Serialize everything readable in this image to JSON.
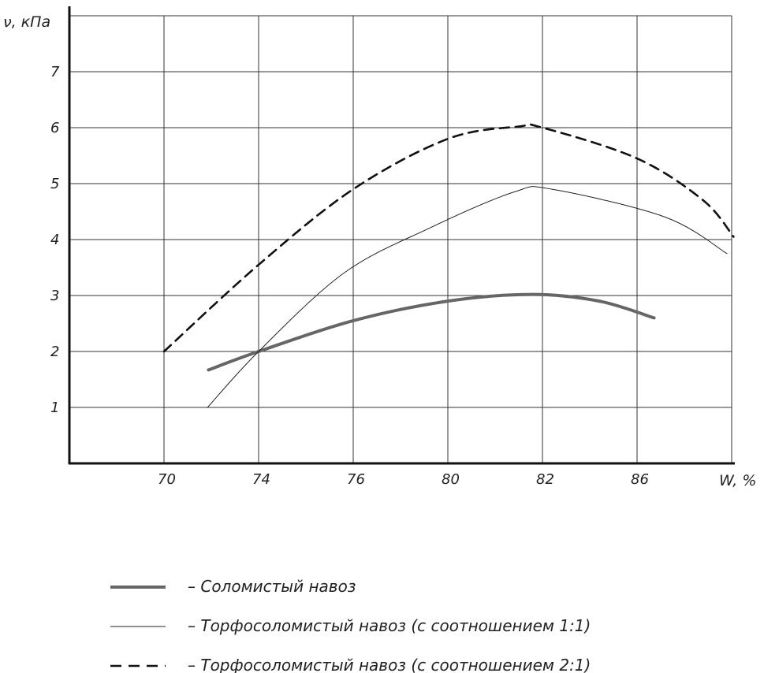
{
  "chart_data": {
    "type": "line",
    "ylabel": "ν, кПа",
    "xlabel": "W, %",
    "x_ticks": [
      "70",
      "74",
      "76",
      "80",
      "82",
      "86"
    ],
    "y_ticks": [
      "1",
      "2",
      "3",
      "4",
      "5",
      "6",
      "7"
    ],
    "ylim": [
      0,
      8
    ],
    "grid": true,
    "legend_position": "bottom",
    "series": [
      {
        "name": "– Соломистый навоз",
        "style": "thick-solid",
        "color": "#666666",
        "points": [
          {
            "x": 1.47,
            "y": 1.67
          },
          {
            "x": 2.0,
            "y": 2.0
          },
          {
            "x": 3.0,
            "y": 2.55
          },
          {
            "x": 4.0,
            "y": 2.9
          },
          {
            "x": 4.9,
            "y": 3.02
          },
          {
            "x": 5.6,
            "y": 2.9
          },
          {
            "x": 6.18,
            "y": 2.6
          }
        ]
      },
      {
        "name": "– Торфосоломистый навоз (с соотношением 1:1)",
        "style": "thin-solid",
        "color": "#222222",
        "points": [
          {
            "x": 1.46,
            "y": 1.0
          },
          {
            "x": 2.0,
            "y": 2.0
          },
          {
            "x": 2.9,
            "y": 3.4
          },
          {
            "x": 3.8,
            "y": 4.2
          },
          {
            "x": 4.7,
            "y": 4.85
          },
          {
            "x": 5.1,
            "y": 4.9
          },
          {
            "x": 6.3,
            "y": 4.4
          },
          {
            "x": 6.95,
            "y": 3.75
          }
        ]
      },
      {
        "name": "– Торфосоломистый навоз (с соотношением 2:1)",
        "style": "dashed",
        "color": "#111111",
        "points": [
          {
            "x": 1.0,
            "y": 2.0
          },
          {
            "x": 2.0,
            "y": 3.55
          },
          {
            "x": 3.0,
            "y": 4.9
          },
          {
            "x": 4.0,
            "y": 5.8
          },
          {
            "x": 4.75,
            "y": 6.02
          },
          {
            "x": 5.0,
            "y": 6.0
          },
          {
            "x": 6.0,
            "y": 5.45
          },
          {
            "x": 6.7,
            "y": 4.7
          },
          {
            "x": 7.02,
            "y": 4.05
          }
        ]
      }
    ]
  }
}
